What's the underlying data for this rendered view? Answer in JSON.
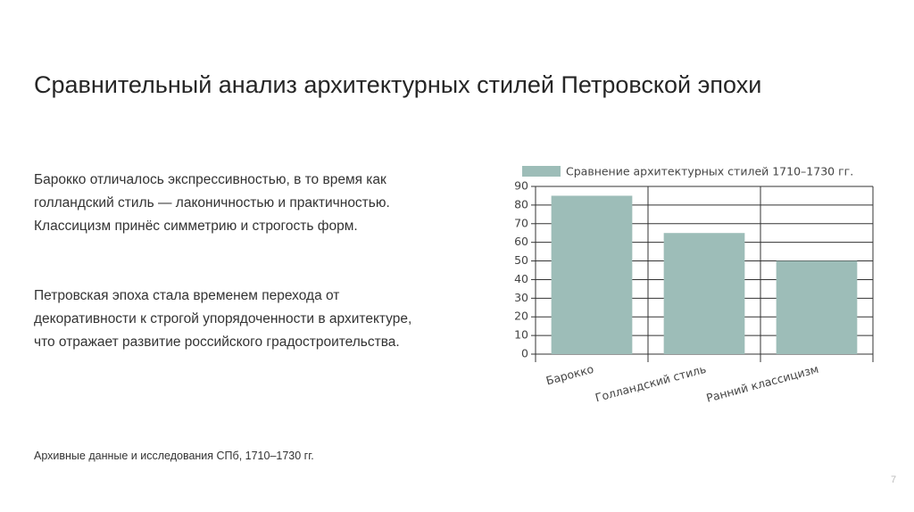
{
  "title": "Сравнительный анализ архитектурных стилей Петровской эпохи",
  "paragraphs": [
    "Барокко отличалось экспрессивностью, в то время как голландский стиль — лаконичностью и практичностью. Классицизм принёс симметрию и строгость форм.",
    "Петровская эпоха стала временем перехода от декоративности к строгой упорядоченности в архитектуре, что отражает развитие российского градостроительства."
  ],
  "source": "Архивные данные и исследования СПб, 1710–1730 гг.",
  "page_number": "7",
  "chart_data": {
    "type": "bar",
    "categories": [
      "Барокко",
      "Голландский стиль",
      "Ранний классицизм"
    ],
    "series": [
      {
        "name": "Сравнение архитектурных стилей 1710–1730 гг.",
        "color": "#9dbdb8",
        "values": [
          85,
          65,
          50
        ]
      }
    ],
    "ylim": [
      0,
      90
    ],
    "yticks": [
      0,
      10,
      20,
      30,
      40,
      50,
      60,
      70,
      80,
      90
    ],
    "grid": true
  }
}
